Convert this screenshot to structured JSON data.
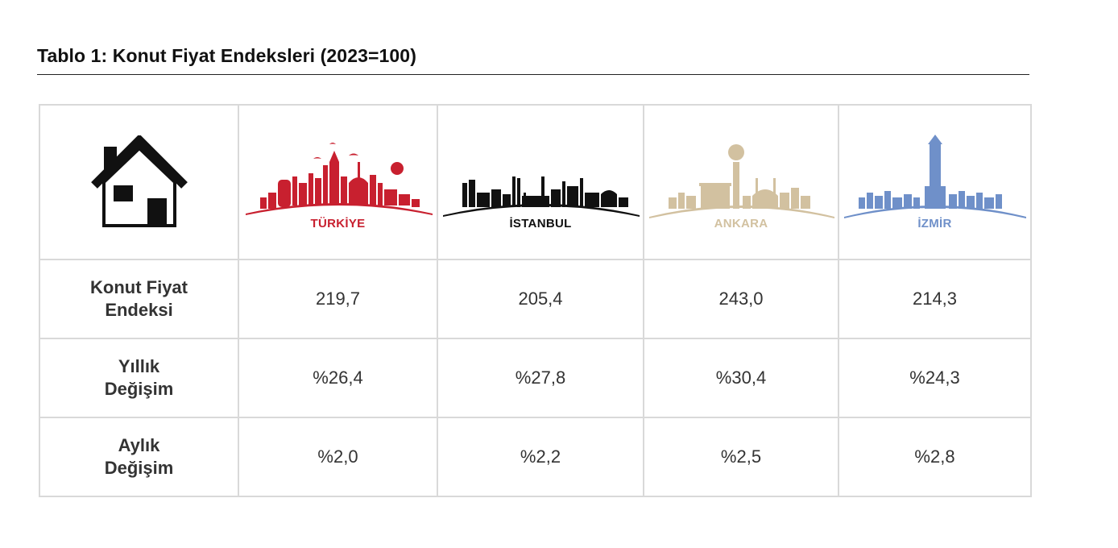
{
  "title": "Tablo 1: Konut Fiyat Endeksleri (2023=100)",
  "header": {
    "house_icon": "house-icon",
    "cities": [
      {
        "name": "TÜRKİYE",
        "color": "#c8202f",
        "icon": "turkiye-skyline-icon"
      },
      {
        "name": "İSTANBUL",
        "color": "#111111",
        "icon": "istanbul-skyline-icon"
      },
      {
        "name": "ANKARA",
        "color": "#d2c1a0",
        "icon": "ankara-skyline-icon"
      },
      {
        "name": "İZMİR",
        "color": "#6f90c9",
        "icon": "izmir-skyline-icon"
      }
    ]
  },
  "rows": [
    {
      "label_line1": "Konut Fiyat",
      "label_line2": "Endeksi",
      "values": [
        "219,7",
        "205,4",
        "243,0",
        "214,3"
      ]
    },
    {
      "label_line1": "Yıllık",
      "label_line2": "Değişim",
      "values": [
        "%26,4",
        "%27,8",
        "%30,4",
        "%24,3"
      ]
    },
    {
      "label_line1": "Aylık",
      "label_line2": "Değişim",
      "values": [
        "%2,0",
        "%2,2",
        "%2,5",
        "%2,8"
      ]
    }
  ]
}
